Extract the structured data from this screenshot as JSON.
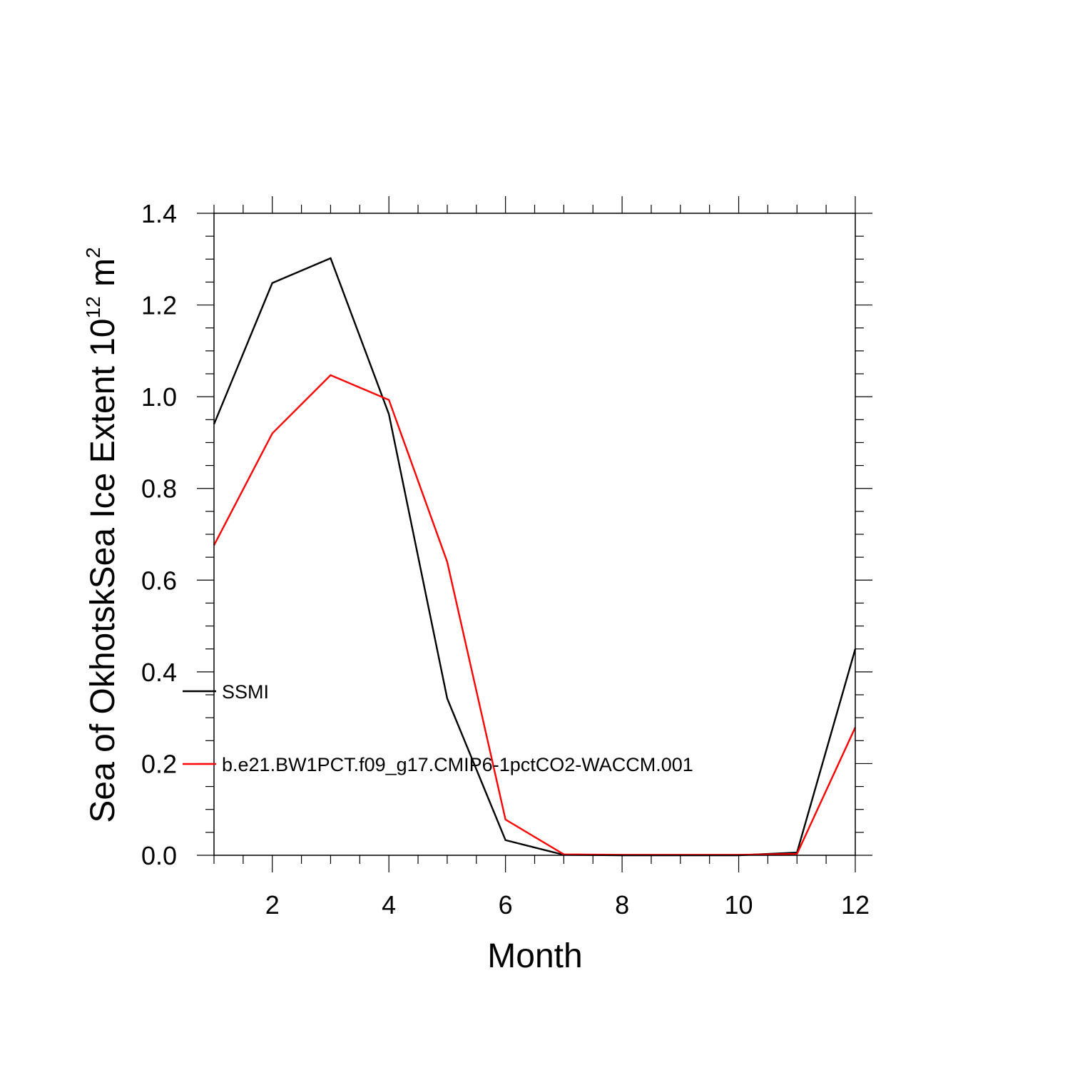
{
  "chart_data": {
    "type": "line",
    "x": [
      1,
      2,
      3,
      4,
      5,
      6,
      7,
      8,
      9,
      10,
      11,
      12
    ],
    "series": [
      {
        "name": "SSMI",
        "color": "#000000",
        "values": [
          0.94,
          1.248,
          1.302,
          0.962,
          0.342,
          0.033,
          0.001,
          0.0,
          0.0,
          0.0,
          0.006,
          0.45
        ]
      },
      {
        "name": "b.e21.BW1PCT.f09_g17.CMIP6-1pctCO2-WACCM.001",
        "color": "#ff0000",
        "values": [
          0.676,
          0.92,
          1.047,
          0.993,
          0.64,
          0.078,
          0.002,
          0.001,
          0.001,
          0.001,
          0.003,
          0.279
        ]
      }
    ],
    "xlabel": "Month",
    "ylabel_base": "Sea of OkhotskSea Ice Extent 10",
    "ylabel_exponent": "12",
    "ylabel_unit": " m",
    "ylabel_unit_exponent": "2",
    "xlim": [
      1,
      12
    ],
    "ylim": [
      0,
      1.4
    ],
    "x_ticks": [
      2,
      4,
      6,
      8,
      10,
      12
    ],
    "y_ticks": [
      "0.0",
      "0.2",
      "0.4",
      "0.6",
      "0.8",
      "1.0",
      "1.2",
      "1.4"
    ],
    "grid": false,
    "legend_placement": "inside-left"
  }
}
